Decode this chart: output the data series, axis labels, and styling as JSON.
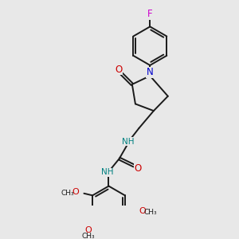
{
  "background_color": "#e8e8e8",
  "bond_color": "#1a1a1a",
  "N_color": "#0000cc",
  "O_color": "#cc0000",
  "F_color": "#cc00cc",
  "H_color": "#008080",
  "figsize": [
    3.0,
    3.0
  ],
  "dpi": 100,
  "xlim": [
    0,
    10
  ],
  "ylim": [
    0,
    10
  ]
}
